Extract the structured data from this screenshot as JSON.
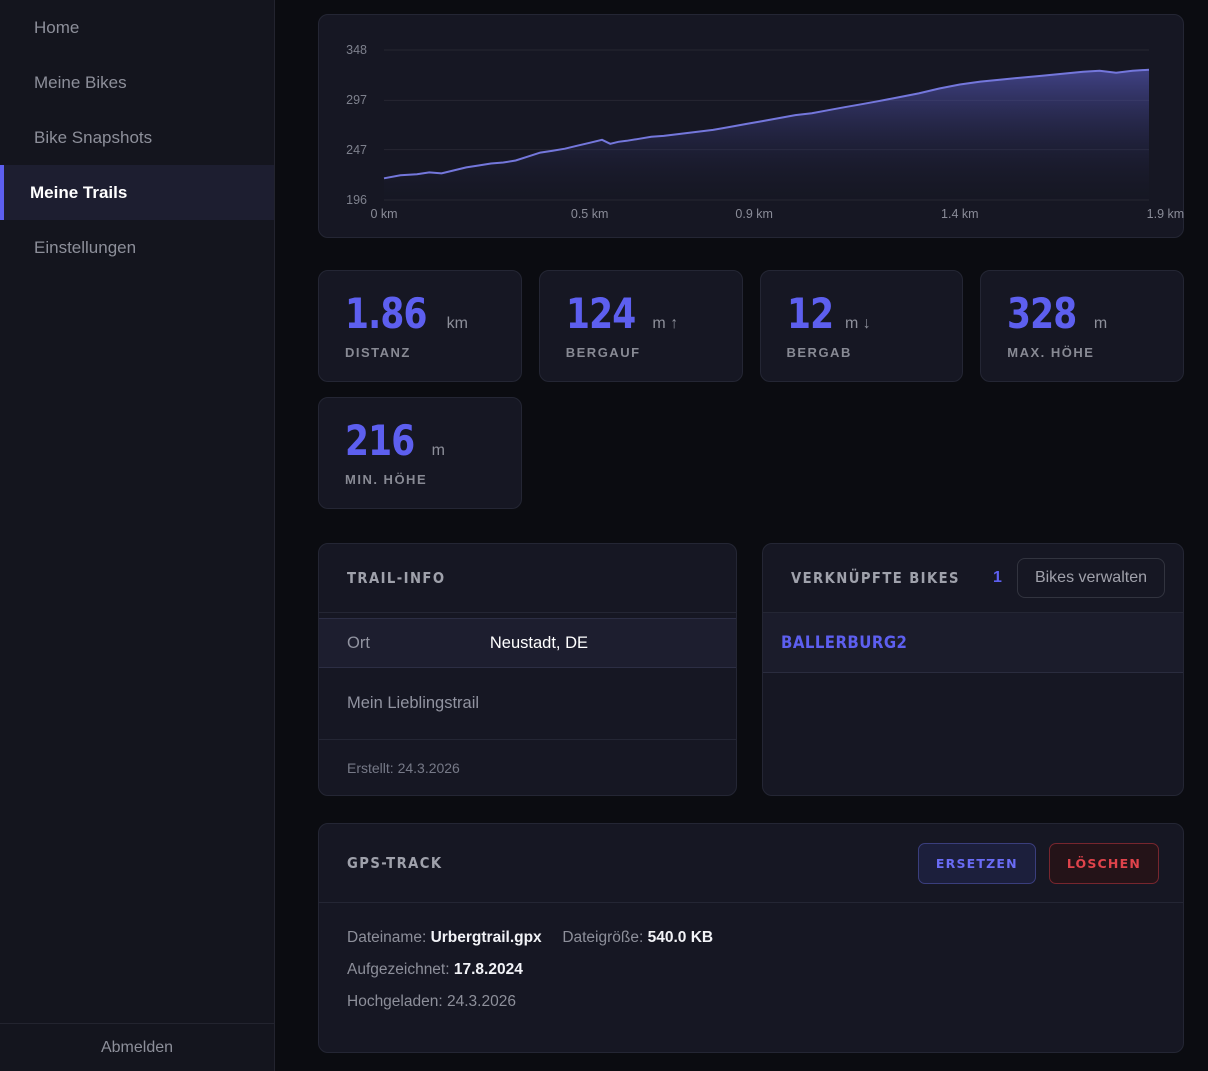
{
  "colors": {
    "background": "#0b0c11",
    "sidebar_background": "#14151e",
    "card_background": "#161723",
    "accent": "#5d5fef",
    "danger": "#e0434b",
    "chart_line": "#7477dc",
    "chart_fill_top": "rgba(99,101,214,0.55)",
    "chart_fill_bottom": "rgba(26,28,52,0.03)",
    "grid_line": "rgba(255,255,255,0.07)"
  },
  "sidebar": {
    "items": [
      {
        "label": "Home"
      },
      {
        "label": "Meine Bikes"
      },
      {
        "label": "Bike Snapshots"
      },
      {
        "label": "Meine Trails",
        "active": true
      },
      {
        "label": "Einstellungen"
      }
    ],
    "logout_label": "Abmelden"
  },
  "chart_data": {
    "type": "area",
    "title": "",
    "xlabel": "",
    "ylabel": "",
    "x_unit": "km",
    "y_unit": "m",
    "x_max": 1.86,
    "y_min": 196,
    "y_max": 348,
    "grid": true,
    "y_ticks": [
      348,
      297,
      247,
      196
    ],
    "x_ticks": [
      {
        "value": 0,
        "label": "0 km"
      },
      {
        "value": 0.5,
        "label": "0.5 km"
      },
      {
        "value": 0.9,
        "label": "0.9 km"
      },
      {
        "value": 1.4,
        "label": "1.4 km"
      },
      {
        "value": 1.9,
        "label": "1.9 km"
      }
    ],
    "x": [
      0,
      0.04,
      0.08,
      0.11,
      0.14,
      0.17,
      0.2,
      0.23,
      0.26,
      0.29,
      0.32,
      0.35,
      0.38,
      0.41,
      0.44,
      0.47,
      0.5,
      0.53,
      0.55,
      0.57,
      0.59,
      0.62,
      0.65,
      0.68,
      0.72,
      0.76,
      0.8,
      0.84,
      0.88,
      0.92,
      0.96,
      1.0,
      1.04,
      1.08,
      1.12,
      1.16,
      1.2,
      1.25,
      1.3,
      1.35,
      1.4,
      1.45,
      1.5,
      1.55,
      1.6,
      1.65,
      1.7,
      1.74,
      1.78,
      1.82,
      1.86
    ],
    "y": [
      218,
      221,
      222,
      224,
      223,
      226,
      229,
      231,
      233,
      234,
      236,
      240,
      244,
      246,
      248,
      251,
      254,
      257,
      253,
      255,
      256,
      258,
      260,
      261,
      263,
      265,
      267,
      270,
      273,
      276,
      279,
      282,
      284,
      287,
      290,
      293,
      296,
      300,
      304,
      309,
      313,
      316,
      318,
      320,
      322,
      324,
      326,
      327,
      325,
      327,
      328
    ]
  },
  "stats": [
    {
      "value": "1.86",
      "unit": "km",
      "label": "DISTANZ"
    },
    {
      "value": "124",
      "unit": "m ↑",
      "label": "BERGAUF"
    },
    {
      "value": "12",
      "unit": "m ↓",
      "label": "BERGAB"
    },
    {
      "value": "328",
      "unit": "m",
      "label": "MAX. HÖHE"
    },
    {
      "value": "216",
      "unit": "m",
      "label": "MIN. HÖHE"
    }
  ],
  "trail_info": {
    "title": "TRAIL-INFO",
    "location_label": "Ort",
    "location_value": "Neustadt, DE",
    "trail_name": "Mein Lieblingstrail",
    "created": "Erstellt: 24.3.2026"
  },
  "linked_bikes": {
    "title": "VERKNÜPFTE BIKES",
    "count": "1",
    "manage_button": "Bikes verwalten",
    "bikes": [
      {
        "name": "BALLERBURG2"
      }
    ]
  },
  "gps_track": {
    "title": "GPS-TRACK",
    "replace_button": "ERSETZEN",
    "delete_button": "LÖSCHEN",
    "filename_label": "Dateiname:",
    "filename": "Urbergtrail.gpx",
    "filesize_label": "Dateigröße:",
    "filesize": "540.0 KB",
    "recorded_label": "Aufgezeichnet:",
    "recorded": "17.8.2024",
    "uploaded_label": "Hochgeladen:",
    "uploaded": "24.3.2026"
  }
}
